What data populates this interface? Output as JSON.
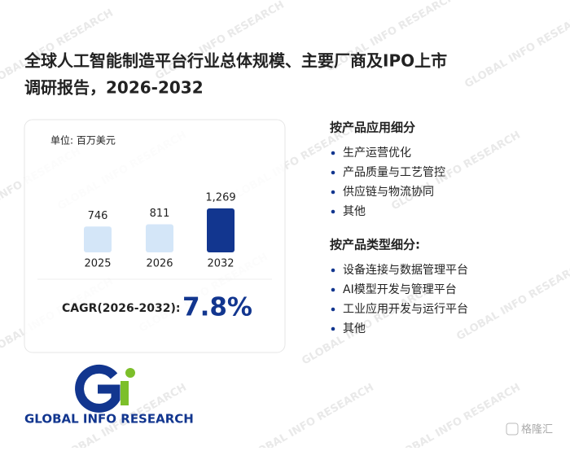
{
  "title_lines": [
    "全球人工智能制造平台行业总体规模、主要厂商及IPO上市",
    "调研报告，2026-2032"
  ],
  "chart_data": {
    "type": "bar",
    "subtitle": "单位: 百万美元",
    "categories": [
      "2025",
      "2026",
      "2032"
    ],
    "values": [
      746,
      811,
      1269
    ],
    "value_labels": [
      "746",
      "811",
      "1,269"
    ],
    "colors": [
      "#d4e6f8",
      "#d4e6f8",
      "#12368f"
    ]
  },
  "cagr": {
    "label": "CAGR(2026-2032):",
    "value": "7.8%"
  },
  "segments": [
    {
      "heading": "按产品应用细分",
      "items": [
        "生产运营优化",
        "产品质量与工艺管控",
        "供应链与物流协同",
        "其他"
      ]
    },
    {
      "heading": "按产品类型细分:",
      "items": [
        "设备连接与数据管理平台",
        "AI模型开发与管理平台",
        "工业应用开发与运行平台",
        "其他"
      ]
    }
  ],
  "logo_text": "GLOBAL INFO RESEARCH",
  "watermark": "GLOBAL INFO RESEARCH",
  "source_badge": "格隆汇"
}
